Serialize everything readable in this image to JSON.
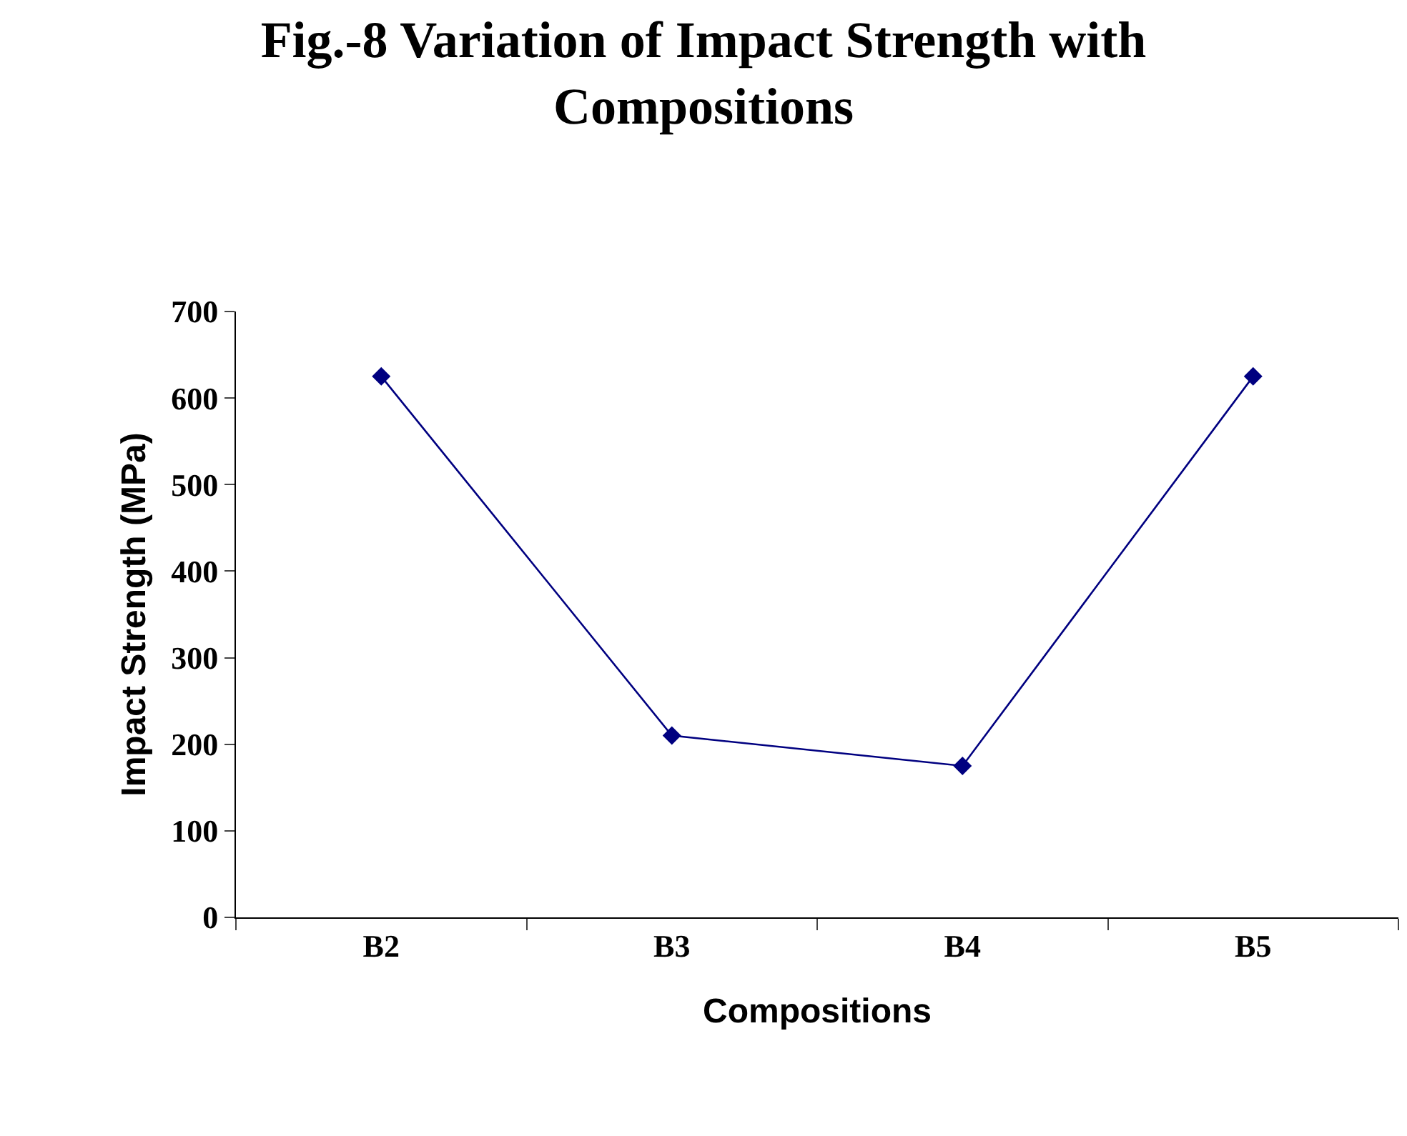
{
  "chart_data": {
    "type": "line",
    "title": "Fig.-8 Variation of Impact Strength with Compositions",
    "xlabel": "Compositions",
    "ylabel": "Impact Strength (MPa)",
    "categories": [
      "B2",
      "B3",
      "B4",
      "B5"
    ],
    "series": [
      {
        "color": "#000080",
        "values": [
          625,
          210,
          175,
          625
        ]
      }
    ],
    "ylim": [
      0,
      700
    ],
    "yticks": [
      0,
      100,
      200,
      300,
      400,
      500,
      600,
      700
    ],
    "marker": "diamond",
    "line_style": "solid"
  }
}
